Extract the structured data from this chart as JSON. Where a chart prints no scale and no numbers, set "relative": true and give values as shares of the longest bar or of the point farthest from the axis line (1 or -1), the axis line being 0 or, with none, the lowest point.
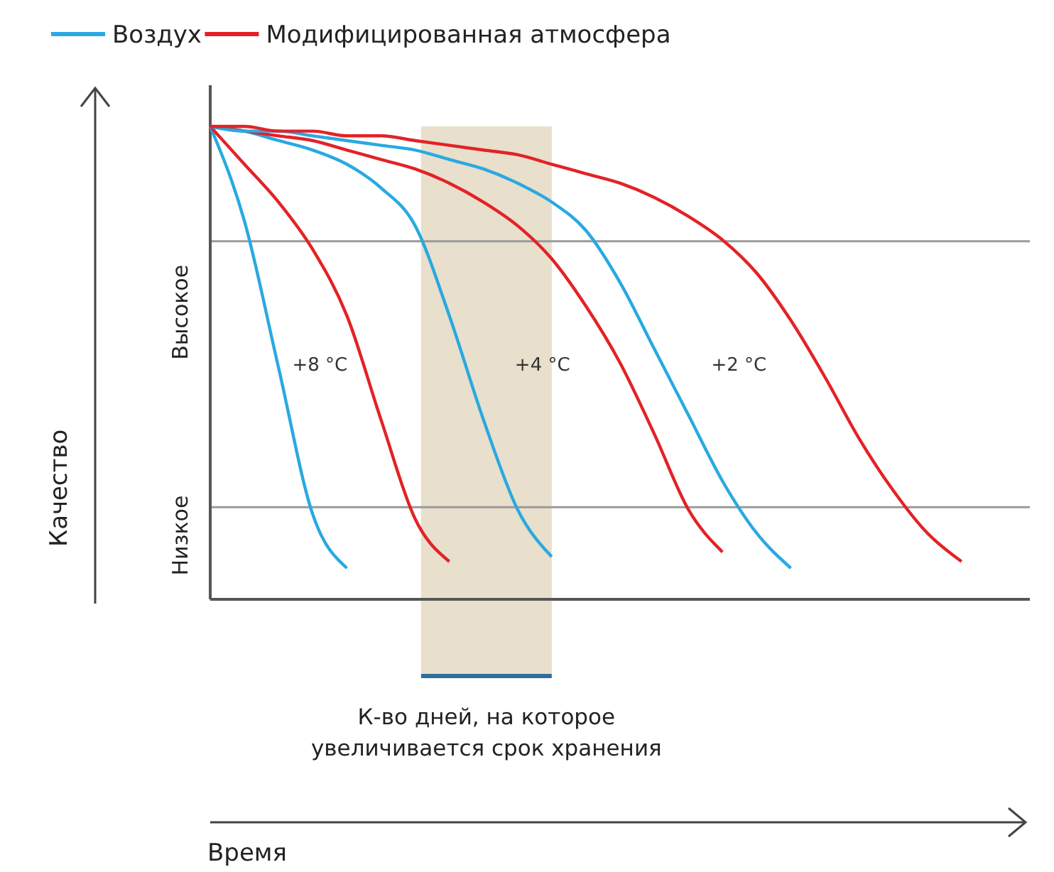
{
  "chart_data": {
    "type": "line",
    "relative": true,
    "categories": [
      null,
      null,
      null,
      null,
      null,
      null,
      null,
      null,
      null,
      null,
      null,
      null,
      null,
      null,
      null,
      null,
      null,
      null,
      null,
      null,
      null,
      null,
      null,
      null,
      null
    ],
    "series": [
      {
        "name": "Воздух",
        "color": "#29a9e1",
        "values": [
          1,
          0.8,
          0.49,
          0.18,
          0.066,
          null,
          null,
          null,
          null,
          null,
          null,
          null,
          null,
          null,
          null,
          null,
          null,
          null,
          null,
          null,
          null,
          null,
          null,
          null,
          null
        ]
      },
      {
        "name": "Модифицированная атмосфера",
        "color": "#e32227",
        "values": [
          1,
          0.92,
          0.84,
          0.74,
          0.6,
          0.38,
          0.17,
          0.08,
          null,
          null,
          null,
          null,
          null,
          null,
          null,
          null,
          null,
          null,
          null,
          null,
          null,
          null,
          null,
          null,
          null
        ]
      },
      {
        "color": "#29a9e1",
        "values": [
          1,
          0.99,
          0.97,
          0.95,
          0.92,
          0.87,
          0.79,
          0.6,
          0.38,
          0.19,
          0.09,
          null,
          null,
          null,
          null,
          null,
          null,
          null,
          null,
          null,
          null,
          null,
          null,
          null,
          null
        ]
      },
      {
        "color": "#e32227",
        "values": [
          1,
          0.99,
          0.98,
          0.97,
          0.95,
          0.93,
          0.91,
          0.88,
          0.84,
          0.79,
          0.72,
          0.62,
          0.5,
          0.35,
          0.19,
          0.1,
          null,
          null,
          null,
          null,
          null,
          null,
          null,
          null,
          null
        ]
      },
      {
        "color": "#29a9e1",
        "values": [
          1,
          0.99,
          0.99,
          0.98,
          0.97,
          0.96,
          0.95,
          0.93,
          0.91,
          0.88,
          0.84,
          0.78,
          0.67,
          0.53,
          0.39,
          0.25,
          0.14,
          0.066,
          null,
          null,
          null,
          null,
          null,
          null,
          null
        ]
      },
      {
        "color": "#e32227",
        "values": [
          1,
          1,
          0.99,
          0.99,
          0.98,
          0.98,
          0.97,
          0.96,
          0.95,
          0.94,
          0.92,
          0.9,
          0.88,
          0.85,
          0.81,
          0.76,
          0.69,
          0.59,
          0.47,
          0.34,
          0.23,
          0.14,
          0.08,
          null,
          null
        ]
      }
    ],
    "annotations": [
      "+8 °C",
      "+4 °C",
      "+2 °C",
      "К-во дней, на которое увеличивается срок хранения",
      "Качество",
      "Время"
    ],
    "ref_lines": [
      {
        "axis": "y",
        "value": 0.757,
        "label": "Высокое",
        "color": "#9a9a9a"
      },
      {
        "axis": "y",
        "value": 0.195,
        "label": "Низкое",
        "color": "#9a9a9a"
      }
    ],
    "legend": "top left",
    "grid": false
  }
}
